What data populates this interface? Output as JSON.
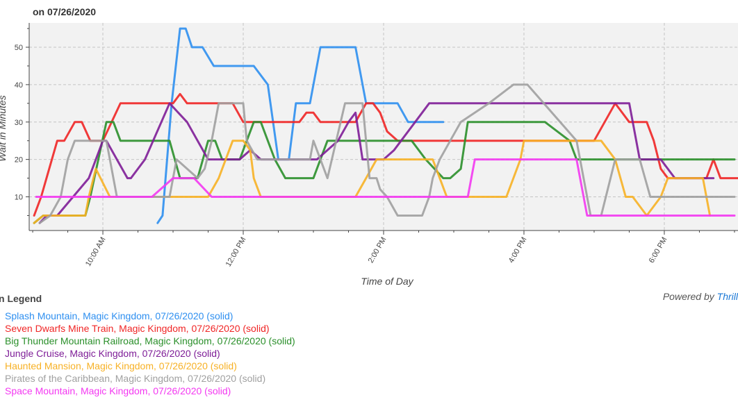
{
  "header": {
    "title": "on 07/26/2020"
  },
  "footer": {
    "powered_prefix": "Powered by ",
    "powered_brand": "Thrill"
  },
  "legend": {
    "title": "n Legend"
  },
  "chart_data": {
    "type": "line",
    "title": "on 07/26/2020",
    "xlabel": "Time of Day",
    "ylabel": "Wait in Minutes",
    "xlim": [
      8.95,
      19.05
    ],
    "ylim": [
      1,
      56.5
    ],
    "yticks": [
      10,
      20,
      30,
      40,
      50
    ],
    "xticks": [
      {
        "value": 10,
        "label": "10:00 AM"
      },
      {
        "value": 12,
        "label": "12:00 PM"
      },
      {
        "value": 14,
        "label": "2:00 PM"
      },
      {
        "value": 16,
        "label": "4:00 PM"
      },
      {
        "value": 18,
        "label": "6:00 PM"
      }
    ],
    "grid": true,
    "series": [
      {
        "name": "Splash Mountain, Magic Kingdom, 07/26/2020 (solid)",
        "color": "#2e8ff0",
        "x": [
          10.78,
          10.85,
          10.98,
          11.1,
          11.18,
          11.27,
          11.42,
          11.58,
          12.15,
          12.35,
          12.5,
          12.65,
          12.75,
          12.95,
          13.1,
          13.6,
          13.75,
          13.85,
          14.2,
          14.35,
          14.85
        ],
        "y": [
          3,
          5,
          35,
          55,
          55,
          50,
          50,
          45,
          45,
          40,
          20,
          20,
          35,
          35,
          50,
          50,
          35,
          35,
          35,
          30,
          30
        ]
      },
      {
        "name": "Seven Dwarfs Mine Train, Magic Kingdom, 07/26/2020 (solid)",
        "color": "#f02525",
        "x": [
          9.02,
          9.12,
          9.35,
          9.45,
          9.6,
          9.7,
          9.82,
          10.0,
          10.25,
          10.6,
          11.0,
          11.1,
          11.2,
          11.55,
          11.85,
          12.0,
          12.15,
          12.8,
          12.9,
          13.0,
          13.1,
          13.6,
          13.75,
          13.85,
          13.95,
          14.05,
          14.2,
          16.0,
          17.0,
          17.3,
          17.5,
          17.75,
          17.85,
          17.95,
          18.05,
          18.6,
          18.7,
          18.8,
          19.05
        ],
        "y": [
          5,
          10,
          25,
          25,
          30,
          30,
          25,
          25,
          35,
          35,
          35,
          37.5,
          35,
          35,
          35,
          30,
          30,
          30,
          32.5,
          32.5,
          30,
          30,
          35,
          35,
          32.5,
          27.5,
          25,
          25,
          25,
          35,
          30,
          30,
          25,
          17.5,
          15,
          15,
          20,
          15,
          15
        ]
      },
      {
        "name": "Big Thunder Mountain Railroad, Magic Kingdom, 07/26/2020 (solid)",
        "color": "#2a8f2a",
        "x": [
          9.02,
          9.15,
          9.75,
          9.82,
          10.05,
          10.15,
          10.25,
          10.95,
          11.1,
          11.35,
          11.5,
          11.6,
          11.7,
          11.95,
          12.05,
          12.15,
          12.25,
          12.45,
          12.6,
          13.0,
          13.2,
          14.4,
          14.6,
          14.85,
          14.95,
          15.1,
          15.2,
          16.3,
          16.65,
          16.75,
          19.0
        ],
        "y": [
          3,
          5,
          5,
          10,
          30,
          30,
          25,
          25,
          15,
          15,
          25,
          25,
          20,
          20,
          25,
          30,
          30,
          20,
          15,
          15,
          25,
          25,
          20,
          15,
          15,
          17.5,
          30,
          30,
          25,
          20,
          20
        ]
      },
      {
        "name": "Jungle Cruise, Magic Kingdom, 07/26/2020 (solid)",
        "color": "#7e1d97",
        "x": [
          9.1,
          9.2,
          9.35,
          9.8,
          9.95,
          10.0,
          10.05,
          10.2,
          10.35,
          10.4,
          10.6,
          10.95,
          11.2,
          11.5,
          11.95,
          12.1,
          12.25,
          13.05,
          13.2,
          13.35,
          13.5,
          13.6,
          13.7,
          14.0,
          14.15,
          14.25,
          14.45,
          14.65,
          16.75,
          17.35,
          17.5,
          17.65,
          17.95,
          18.05,
          18.15,
          18.7
        ],
        "y": [
          3,
          5,
          5,
          15,
          22.5,
          25,
          25,
          20,
          15,
          15,
          20,
          35,
          30,
          20,
          20,
          22.5,
          20,
          20,
          22.5,
          25,
          30,
          32.5,
          20,
          20,
          22.5,
          25,
          30,
          35,
          35,
          35,
          35,
          20,
          20,
          17.5,
          15,
          15
        ]
      },
      {
        "name": "Haunted Mansion, Magic Kingdom, 07/26/2020 (solid)",
        "color": "#f7b125",
        "x": [
          9.02,
          9.15,
          9.75,
          9.8,
          9.9,
          10.1,
          10.9,
          11.5,
          11.65,
          11.85,
          12.0,
          12.1,
          12.15,
          12.25,
          13.6,
          13.75,
          13.9,
          14.45,
          14.7,
          14.9,
          15.6,
          15.75,
          15.85,
          15.95,
          16.0,
          17.1,
          17.3,
          17.45,
          17.55,
          17.75,
          17.95,
          18.05,
          18.15,
          18.55,
          18.65
        ],
        "y": [
          3,
          5,
          5,
          10,
          17.5,
          10,
          10,
          10,
          15,
          25,
          25,
          22.5,
          15,
          10,
          10,
          15,
          20,
          20,
          20,
          10,
          10,
          10,
          15,
          20,
          25,
          25,
          20,
          10,
          10,
          5,
          10,
          15,
          15,
          15,
          5
        ]
      },
      {
        "name": "Pirates of the Caribbean, Magic Kingdom, 07/26/2020 (solid)",
        "color": "#a0a0a0",
        "x": [
          9.1,
          9.25,
          9.4,
          9.5,
          9.6,
          9.75,
          9.95,
          10.05,
          10.2,
          10.95,
          11.05,
          11.35,
          11.45,
          11.55,
          11.65,
          12.0,
          12.05,
          12.2,
          12.95,
          13.0,
          13.2,
          13.45,
          13.7,
          13.8,
          13.9,
          13.95,
          14.05,
          14.2,
          14.3,
          14.55,
          14.65,
          14.7,
          14.8,
          14.95,
          15.1,
          15.5,
          15.85,
          15.95,
          16.05,
          16.75,
          16.95,
          17.1,
          17.3,
          17.65,
          17.8,
          17.9,
          19.0
        ],
        "y": [
          3,
          5,
          10,
          20,
          25,
          25,
          25,
          25,
          10,
          10,
          20,
          15,
          17.5,
          25,
          35,
          35,
          25,
          20,
          20,
          25,
          15,
          35,
          35,
          15,
          15,
          12,
          10,
          5,
          5,
          5,
          10,
          15,
          20,
          25,
          30,
          35,
          40,
          40,
          40,
          25,
          5,
          5,
          20,
          20,
          10,
          10,
          10
        ]
      },
      {
        "name": "Space Mountain, Magic Kingdom, 07/26/2020 (solid)",
        "color": "#f338f1",
        "x": [
          9.05,
          9.15,
          10.55,
          10.7,
          11.0,
          11.3,
          11.55,
          11.65,
          14.65,
          14.75,
          14.95,
          15.2,
          15.3,
          16.75,
          16.9,
          17.5,
          17.6,
          18.05,
          18.4,
          19.0
        ],
        "y": [
          10,
          10,
          10,
          10,
          15,
          15,
          10,
          10,
          10,
          10,
          10,
          10,
          20,
          20,
          5,
          5,
          5,
          5,
          5,
          5
        ]
      }
    ]
  }
}
